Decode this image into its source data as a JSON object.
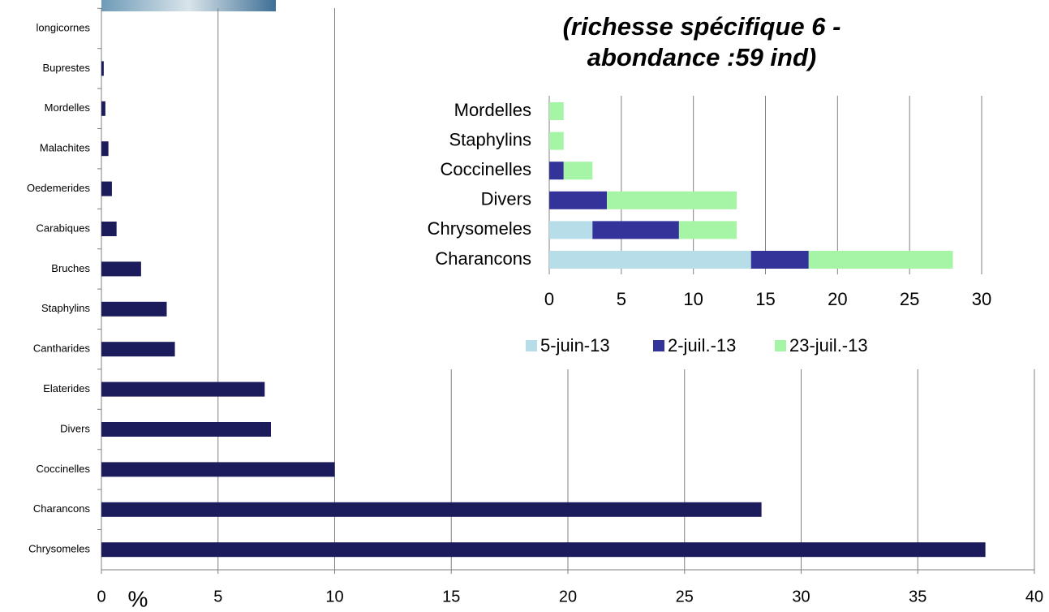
{
  "chart_data": [
    {
      "type": "bar",
      "orientation": "horizontal",
      "x_label": "%",
      "categories": [
        "longicornes",
        "Buprestes",
        "Mordelles",
        "Malachites",
        "Oedemerides",
        "Carabiques",
        "Bruches",
        "Staphylins",
        "Cantharides",
        "Elaterides",
        "Divers",
        "Coccinelles",
        "Charancons",
        "Chrysomeles"
      ],
      "values": [
        0,
        0.1,
        0.17,
        0.3,
        0.45,
        0.65,
        1.7,
        2.8,
        3.15,
        7.0,
        7.27,
        10.0,
        28.3,
        37.9
      ],
      "color": "#1c1c5c",
      "xlim": [
        0,
        40
      ],
      "xticks": [
        0,
        5,
        10,
        15,
        20,
        25,
        30,
        35,
        40
      ],
      "grid": true
    },
    {
      "type": "stacked_bar",
      "orientation": "horizontal",
      "title_lines": [
        "(richesse spécifique 6 -",
        "abondance :59 ind)"
      ],
      "categories": [
        "Mordelles",
        "Staphylins",
        "Coccinelles",
        "Divers",
        "Chrysomeles",
        "Charancons"
      ],
      "series": [
        {
          "name": "5-juin-13",
          "color": "#b7dee8",
          "values": [
            0,
            0,
            0,
            0,
            3,
            14
          ]
        },
        {
          "name": "2-juil.-13",
          "color": "#333399",
          "values": [
            0,
            0,
            1,
            4,
            6,
            4
          ]
        },
        {
          "name": "23-juil.-13",
          "color": "#a6f5a6",
          "values": [
            1,
            1,
            2,
            9,
            4,
            10
          ]
        }
      ],
      "xlim": [
        0,
        30
      ],
      "xticks": [
        0,
        5,
        10,
        15,
        20,
        25,
        30
      ],
      "grid": true,
      "legend": "bottom"
    }
  ]
}
